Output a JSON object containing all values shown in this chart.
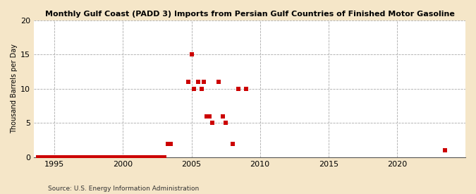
{
  "title": "Monthly Gulf Coast (PADD 3) Imports from Persian Gulf Countries of Finished Motor Gasoline",
  "ylabel": "Thousand Barrels per Day",
  "source": "Source: U.S. Energy Information Administration",
  "background_color": "#f5e6c8",
  "plot_bg_color": "#ffffff",
  "xlim": [
    1993.5,
    2025
  ],
  "ylim": [
    0,
    20
  ],
  "yticks": [
    0,
    5,
    10,
    15,
    20
  ],
  "xticks": [
    1995,
    2000,
    2005,
    2010,
    2015,
    2020
  ],
  "marker_color": "#cc0000",
  "marker_size": 4,
  "data_x": [
    1993.8,
    1994.0,
    1994.2,
    1994.4,
    1994.6,
    1994.8,
    1995.0,
    1995.2,
    1995.4,
    1995.6,
    1995.8,
    1996.0,
    1996.2,
    1996.4,
    1996.6,
    1996.8,
    1997.0,
    1997.2,
    1997.4,
    1997.6,
    1997.8,
    1998.0,
    1998.2,
    1998.4,
    1998.6,
    1998.8,
    1999.0,
    1999.2,
    1999.4,
    1999.6,
    1999.8,
    2000.0,
    2000.2,
    2000.4,
    2000.6,
    2000.8,
    2001.0,
    2001.2,
    2001.4,
    2001.6,
    2001.8,
    2002.0,
    2002.2,
    2002.4,
    2002.6,
    2002.8,
    2003.0,
    2003.25,
    2003.5,
    2004.75,
    2005.0,
    2005.2,
    2005.5,
    2005.75,
    2005.9,
    2006.1,
    2006.3,
    2006.5,
    2007.0,
    2007.3,
    2007.5,
    2008.0,
    2008.4,
    2009.0,
    2023.5
  ],
  "data_y": [
    0,
    0,
    0,
    0,
    0,
    0,
    0,
    0,
    0,
    0,
    0,
    0,
    0,
    0,
    0,
    0,
    0,
    0,
    0,
    0,
    0,
    0,
    0,
    0,
    0,
    0,
    0,
    0,
    0,
    0,
    0,
    0,
    0,
    0,
    0,
    0,
    0,
    0,
    0,
    0,
    0,
    0,
    0,
    0,
    0,
    0,
    0,
    2,
    2,
    11,
    15,
    10,
    11,
    10,
    11,
    6,
    6,
    5,
    11,
    6,
    5,
    2,
    10,
    10,
    1
  ]
}
